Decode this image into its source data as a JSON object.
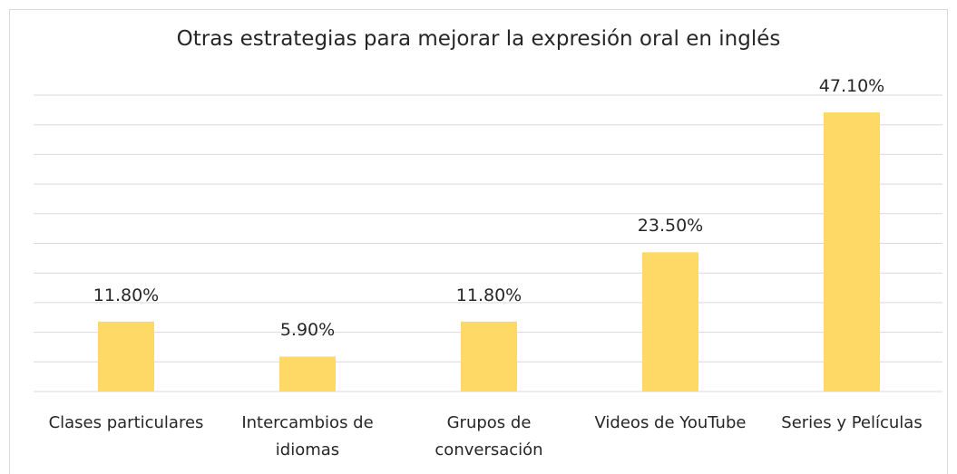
{
  "chart_data": {
    "type": "bar",
    "title": "Otras estrategias para mejorar la expresión oral en inglés",
    "categories": [
      "Clases particulares",
      "Intercambios de idiomas",
      "Grupos de conversación",
      "Videos de YouTube",
      "Series y Películas"
    ],
    "values": [
      11.8,
      5.9,
      11.8,
      23.5,
      47.1
    ],
    "value_labels": [
      "11.80%",
      "5.90%",
      "11.80%",
      "23.50%",
      "47.10%"
    ],
    "color": "#ffd966",
    "ylim": [
      0,
      50
    ],
    "yticks": [
      0,
      5,
      10,
      15,
      20,
      25,
      30,
      35,
      40,
      45,
      50
    ],
    "grid": true
  }
}
